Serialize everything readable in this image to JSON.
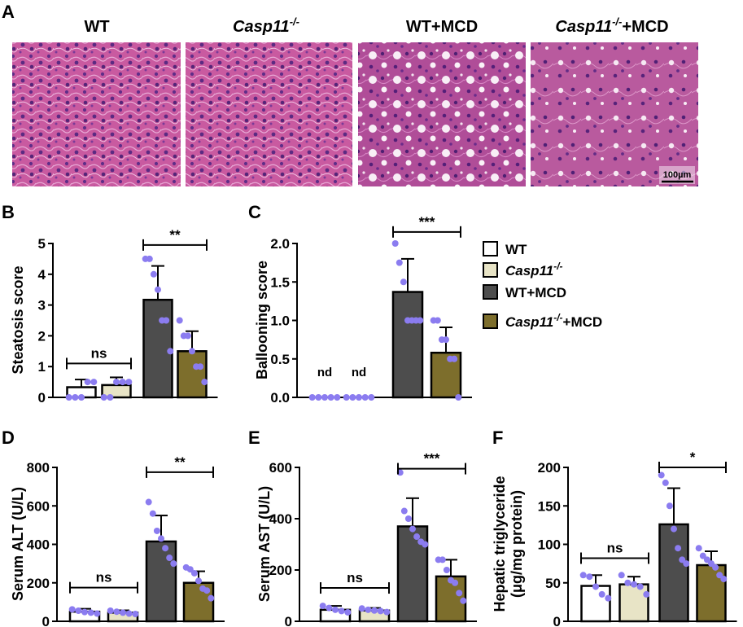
{
  "panel_letters": [
    "A",
    "B",
    "C",
    "D",
    "E",
    "F"
  ],
  "images": {
    "titles": [
      {
        "main": "WT",
        "sup": "",
        "suffix": ""
      },
      {
        "main": "Casp11",
        "sup": "-/-",
        "suffix": ""
      },
      {
        "main": "WT+MCD",
        "sup": "",
        "suffix": ""
      },
      {
        "main": "Casp11",
        "sup": "-/-",
        "suffix": "+MCD"
      }
    ],
    "scale_bar": "100µm"
  },
  "legend": [
    {
      "main": "WT",
      "sup": "",
      "suffix": "",
      "fill": "#ffffff"
    },
    {
      "main": "Casp11",
      "sup": "-/-",
      "suffix": "",
      "fill": "#e8e4c6"
    },
    {
      "main": "WT+MCD",
      "sup": "",
      "suffix": "",
      "fill": "#4d4d4d"
    },
    {
      "main": "Casp11",
      "sup": "-/-",
      "suffix": "+MCD",
      "fill": "#7d6e2c"
    }
  ],
  "colors": {
    "dot": "#8b7cf0",
    "bar_edge": "#000000"
  },
  "chart_data": [
    {
      "panel": "B",
      "type": "bar",
      "ylabel": "Steatosis score",
      "ylim": [
        0,
        5
      ],
      "yticks": [
        0,
        1,
        2,
        3,
        4,
        5
      ],
      "categories": [
        "WT",
        "Casp11-/-",
        "WT+MCD",
        "Casp11-/-+MCD"
      ],
      "values": [
        0.33,
        0.4,
        3.17,
        1.5
      ],
      "sd": [
        0.25,
        0.25,
        1.1,
        0.65
      ],
      "points": [
        [
          0,
          0,
          0,
          0.5,
          0.5
        ],
        [
          0,
          0,
          0.5,
          0.5,
          0.5
        ],
        [
          4.5,
          4.5,
          4,
          3.5,
          2.5,
          2.5,
          1.5
        ],
        [
          2.5,
          2,
          2,
          1.5,
          1,
          1,
          0.5
        ]
      ],
      "nd_label": "",
      "nd_groups": [],
      "brackets": [
        {
          "from": 0,
          "to": 1,
          "label": "ns",
          "y": 1.1
        },
        {
          "from": 2,
          "to": 3,
          "label": "**",
          "y": 4.95
        }
      ]
    },
    {
      "panel": "C",
      "type": "bar",
      "ylabel": "Ballooning score",
      "ylim": [
        0,
        2
      ],
      "yticks": [
        0.0,
        0.5,
        1.0,
        1.5,
        2.0
      ],
      "tick_labels": [
        "0.0",
        "0.5",
        "1.0",
        "1.5",
        "2.0"
      ],
      "categories": [
        "WT",
        "Casp11-/-",
        "WT+MCD",
        "Casp11-/-+MCD"
      ],
      "values": [
        0,
        0,
        1.37,
        0.58
      ],
      "sd": [
        0,
        0,
        0.43,
        0.33
      ],
      "points": [
        [
          0,
          0,
          0,
          0,
          0
        ],
        [
          0,
          0,
          0,
          0,
          0
        ],
        [
          2,
          1.75,
          1.5,
          1,
          1,
          1,
          1
        ],
        [
          1,
          1,
          0.75,
          0.75,
          0.5,
          0.5,
          0
        ]
      ],
      "nd_label": "nd",
      "nd_groups": [
        0,
        1
      ],
      "brackets": [
        {
          "from": 2,
          "to": 3,
          "label": "***",
          "y": 2.15
        }
      ]
    },
    {
      "panel": "D",
      "type": "bar",
      "ylabel": "Serum ALT (U/L)",
      "ylim": [
        0,
        800
      ],
      "yticks": [
        0,
        200,
        400,
        600,
        800
      ],
      "categories": [
        "WT",
        "Casp11-/-",
        "WT+MCD",
        "Casp11-/-+MCD"
      ],
      "values": [
        50,
        45,
        415,
        200
      ],
      "sd": [
        15,
        12,
        135,
        60
      ],
      "points": [
        [
          62,
          55,
          48,
          45,
          40
        ],
        [
          55,
          50,
          45,
          40,
          38
        ],
        [
          620,
          560,
          470,
          430,
          380,
          330,
          300
        ],
        [
          280,
          270,
          250,
          210,
          170,
          160,
          120
        ]
      ],
      "nd_label": "",
      "nd_groups": [],
      "brackets": [
        {
          "from": 0,
          "to": 1,
          "label": "ns",
          "y": 175
        },
        {
          "from": 2,
          "to": 3,
          "label": "**",
          "y": 775
        }
      ]
    },
    {
      "panel": "E",
      "type": "bar",
      "ylabel": "Serum AST (U/L)",
      "ylim": [
        0,
        600
      ],
      "yticks": [
        0,
        200,
        400,
        600
      ],
      "categories": [
        "WT",
        "Casp11-/-",
        "WT+MCD",
        "Casp11-/-+MCD"
      ],
      "values": [
        45,
        42,
        370,
        175
      ],
      "sd": [
        15,
        10,
        110,
        65
      ],
      "points": [
        [
          60,
          52,
          45,
          40,
          35
        ],
        [
          50,
          45,
          42,
          40,
          36
        ],
        [
          580,
          430,
          400,
          360,
          330,
          310,
          300
        ],
        [
          240,
          240,
          200,
          160,
          150,
          110,
          80
        ]
      ],
      "nd_label": "",
      "nd_groups": [],
      "brackets": [
        {
          "from": 0,
          "to": 1,
          "label": "ns",
          "y": 130
        },
        {
          "from": 2,
          "to": 3,
          "label": "***",
          "y": 595
        }
      ]
    },
    {
      "panel": "F",
      "type": "bar",
      "ylabel": "Hepatic triglyceride\n(μg/mg protein)",
      "ylim": [
        0,
        200
      ],
      "yticks": [
        0,
        50,
        100,
        150,
        200
      ],
      "categories": [
        "WT",
        "Casp11-/-",
        "WT+MCD",
        "Casp11-/-+MCD"
      ],
      "values": [
        46,
        48,
        126,
        73
      ],
      "sd": [
        14,
        10,
        47,
        18
      ],
      "points": [
        [
          60,
          58,
          45,
          35,
          30
        ],
        [
          60,
          50,
          48,
          45,
          35
        ],
        [
          190,
          180,
          150,
          120,
          95,
          80,
          75
        ],
        [
          95,
          85,
          80,
          75,
          70,
          60,
          55
        ]
      ],
      "nd_label": "",
      "nd_groups": [],
      "brackets": [
        {
          "from": 0,
          "to": 1,
          "label": "ns",
          "y": 82
        },
        {
          "from": 2,
          "to": 3,
          "label": "*",
          "y": 200
        }
      ]
    }
  ]
}
